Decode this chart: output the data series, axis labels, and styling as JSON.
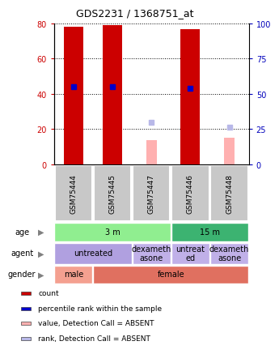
{
  "title": "GDS2231 / 1368751_at",
  "samples": [
    "GSM75444",
    "GSM75445",
    "GSM75447",
    "GSM75446",
    "GSM75448"
  ],
  "red_bars": [
    78,
    79,
    0,
    77,
    0
  ],
  "pink_bars": [
    0,
    0,
    14,
    0,
    15
  ],
  "blue_dots": [
    44,
    44,
    0,
    43,
    0
  ],
  "lavender_dots": [
    0,
    0,
    24,
    0,
    21
  ],
  "ylim_left": [
    0,
    80
  ],
  "ylim_right": [
    0,
    100
  ],
  "yticks_left": [
    0,
    20,
    40,
    60,
    80
  ],
  "yticks_right": [
    0,
    25,
    50,
    75,
    100
  ],
  "age_labels": [
    {
      "text": "3 m",
      "cols": [
        0,
        1,
        2
      ],
      "color": "#90EE90"
    },
    {
      "text": "15 m",
      "cols": [
        3,
        4
      ],
      "color": "#3CB371"
    }
  ],
  "agent_labels": [
    {
      "text": "untreated",
      "cols": [
        0,
        1
      ],
      "color": "#B0A0E0"
    },
    {
      "text": "dexameth\nasone",
      "cols": [
        2
      ],
      "color": "#C0B0E8"
    },
    {
      "text": "untreat\ned",
      "cols": [
        3
      ],
      "color": "#C0B0E8"
    },
    {
      "text": "dexameth\nasone",
      "cols": [
        4
      ],
      "color": "#C0B0E8"
    }
  ],
  "gender_labels": [
    {
      "text": "male",
      "cols": [
        0
      ],
      "color": "#F4A090"
    },
    {
      "text": "female",
      "cols": [
        1,
        2,
        3,
        4
      ],
      "color": "#E07060"
    }
  ],
  "row_labels": [
    "age",
    "agent",
    "gender"
  ],
  "legend_items": [
    {
      "color": "#CC0000",
      "label": "count"
    },
    {
      "color": "#0000CC",
      "label": "percentile rank within the sample"
    },
    {
      "color": "#FFB0B0",
      "label": "value, Detection Call = ABSENT"
    },
    {
      "color": "#B8B8E8",
      "label": "rank, Detection Call = ABSENT"
    }
  ],
  "sample_box_color": "#C8C8C8",
  "plot_bg": "#FFFFFF",
  "left_label_color": "#CC0000",
  "right_label_color": "#0000BB"
}
